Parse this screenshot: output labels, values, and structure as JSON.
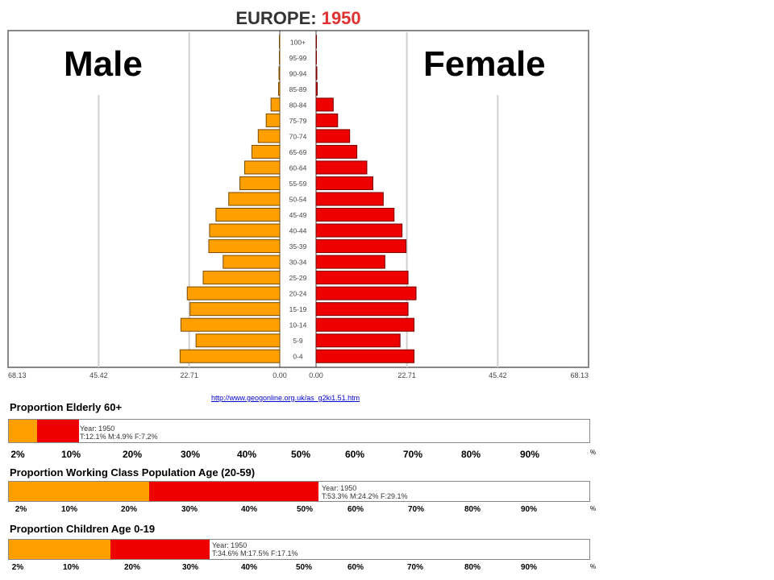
{
  "title": {
    "prefix": "EUROPE:",
    "year": "1950"
  },
  "labels": {
    "male": "Male",
    "female": "Female"
  },
  "source_link": "http://www.geogonline.org.uk/as_g2ki1.51.htm",
  "chart_data": {
    "type": "bar",
    "orientation": "horizontal",
    "subtype": "population-pyramid",
    "categories": [
      "0-4",
      "5-9",
      "10-14",
      "15-19",
      "20-24",
      "25-29",
      "30-34",
      "35-39",
      "40-44",
      "45-49",
      "50-54",
      "55-59",
      "60-64",
      "65-69",
      "70-74",
      "75-79",
      "80-84",
      "85-89",
      "90-94",
      "95-99",
      "100+"
    ],
    "series": [
      {
        "name": "Male",
        "color": "#ffa000",
        "values": [
          25.0,
          21.0,
          24.8,
          22.5,
          23.2,
          19.2,
          14.2,
          17.8,
          17.6,
          16.0,
          12.8,
          10.0,
          8.8,
          7.0,
          5.4,
          3.4,
          2.2,
          0.3,
          0.2,
          0.1,
          0.1
        ]
      },
      {
        "name": "Female",
        "color": "#ee0000",
        "values": [
          24.5,
          21.0,
          24.5,
          23.0,
          25.0,
          23.0,
          17.2,
          22.5,
          21.5,
          19.5,
          16.8,
          14.2,
          12.7,
          10.2,
          8.4,
          5.4,
          4.3,
          0.3,
          0.2,
          0.1,
          0.1
        ]
      }
    ],
    "x_ticks_left": [
      "68.13",
      "45.42",
      "22.71",
      "0.00"
    ],
    "x_ticks_right": [
      "0.00",
      "22.71",
      "45.42",
      "68.13"
    ],
    "xlim": [
      0,
      68.13
    ],
    "grid": true
  },
  "proportions": [
    {
      "title": "Proportion Elderly 60+",
      "male_pct": 4.9,
      "female_pct": 7.2,
      "year_line": "Year: 1950",
      "values_line": "T:12.1%  M:4.9%  F:7.2%",
      "ticks": [
        "2%",
        "10%",
        "20%",
        "30%",
        "40%",
        "50%",
        "60%",
        "70%",
        "80%",
        "90%",
        "%"
      ]
    },
    {
      "title": "Proportion Working Class Population Age (20-59)",
      "male_pct": 24.2,
      "female_pct": 29.1,
      "year_line": "Year: 1950",
      "values_line": "T:53.3%  M:24.2%  F:29.1%",
      "ticks": [
        "2%",
        "10%",
        "20%",
        "30%",
        "40%",
        "50%",
        "60%",
        "70%",
        "80%",
        "90%",
        "%"
      ]
    },
    {
      "title": "Proportion Children Age 0-19",
      "male_pct": 17.5,
      "female_pct": 17.1,
      "year_line": "Year: 1950",
      "values_line": "T:34.6%  M:17.5%  F:17.1%",
      "ticks": [
        "2%",
        "10%",
        "20%",
        "30%",
        "40%",
        "50%",
        "60%",
        "70%",
        "80%",
        "90%",
        "%"
      ]
    }
  ]
}
